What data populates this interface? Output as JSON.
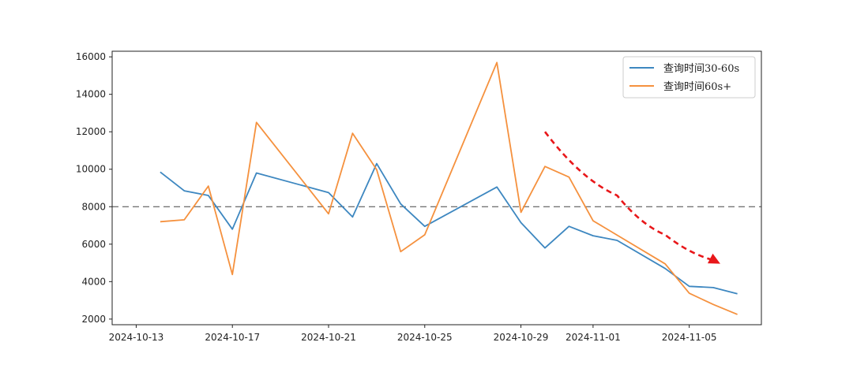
{
  "chart_data": {
    "type": "line",
    "x_type": "date",
    "xlim": [
      "2024-10-12",
      "2024-11-08"
    ],
    "ylim": [
      1700,
      16300
    ],
    "x_ticks": [
      "2024-10-13",
      "2024-10-17",
      "2024-10-21",
      "2024-10-25",
      "2024-10-29",
      "2024-11-01",
      "2024-11-05"
    ],
    "y_ticks": [
      2000,
      4000,
      6000,
      8000,
      10000,
      12000,
      14000,
      16000
    ],
    "grid": false,
    "legend": "top-right",
    "reference_line": {
      "y": 8000,
      "style": "dashed",
      "color": "#444444"
    },
    "series": [
      {
        "name": "查询时间30-60s",
        "color": "#3d87c0",
        "x": [
          "2024-10-14",
          "2024-10-15",
          "2024-10-16",
          "2024-10-17",
          "2024-10-18",
          "2024-10-21",
          "2024-10-22",
          "2024-10-23",
          "2024-10-24",
          "2024-10-25",
          "2024-10-28",
          "2024-10-29",
          "2024-10-30",
          "2024-10-31",
          "2024-11-01",
          "2024-11-02",
          "2024-11-04",
          "2024-11-05",
          "2024-11-06",
          "2024-11-07"
        ],
        "values": [
          9850,
          8850,
          8600,
          6800,
          9800,
          8750,
          7450,
          10300,
          8150,
          6950,
          9050,
          7150,
          5800,
          6950,
          6450,
          6200,
          4700,
          3750,
          3680,
          3350
        ]
      },
      {
        "name": "查询时间60s+",
        "color": "#f5913e",
        "x": [
          "2024-10-14",
          "2024-10-15",
          "2024-10-16",
          "2024-10-17",
          "2024-10-18",
          "2024-10-21",
          "2024-10-22",
          "2024-10-23",
          "2024-10-24",
          "2024-10-25",
          "2024-10-28",
          "2024-10-29",
          "2024-10-30",
          "2024-10-31",
          "2024-11-01",
          "2024-11-04",
          "2024-11-05",
          "2024-11-06",
          "2024-11-07"
        ],
        "values": [
          7200,
          7300,
          9100,
          4380,
          12500,
          7620,
          11920,
          9980,
          5600,
          6500,
          15700,
          7700,
          10150,
          9580,
          7250,
          4950,
          3380,
          2780,
          2250
        ]
      }
    ],
    "annotation_arrow": {
      "color": "#e8171a",
      "style": "dashed",
      "points": [
        [
          "2024-10-30",
          12000
        ],
        [
          "2024-11-02",
          8600
        ],
        [
          "2024-11-04",
          6500
        ],
        [
          "2024-11-06",
          5150
        ]
      ]
    }
  }
}
